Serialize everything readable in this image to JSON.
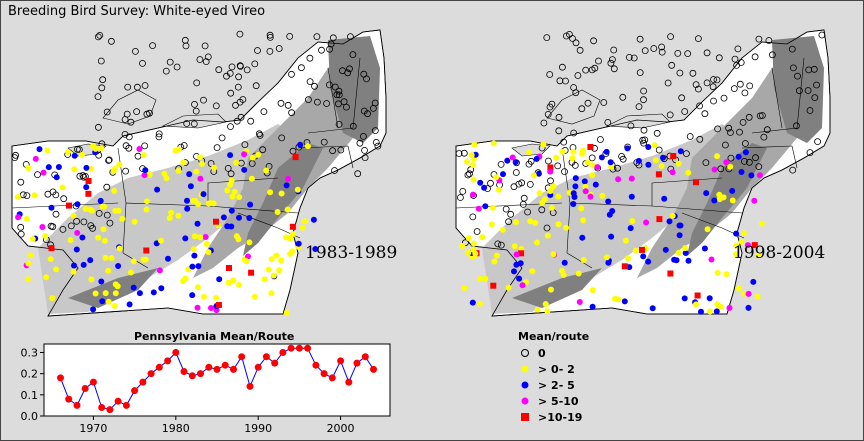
{
  "title": "Breeding Bird Survey: White-eyed Vireo",
  "maps": [
    {
      "period": "1983-1989"
    },
    {
      "period": "1998-2004"
    }
  ],
  "colors": {
    "background": "#dcdcdc",
    "land": "#ffffff",
    "range_light": "#c8c8c8",
    "range_mid": "#a8a8a8",
    "range_dark": "#808080",
    "zero": "#000000",
    "c0_2": "#ffff00",
    "c2_5": "#0000ff",
    "c5_10": "#ff00ff",
    "c10_19": "#ff0000",
    "line": "#0000ff",
    "points": "#ff0000"
  },
  "legend": {
    "title": "Mean/route",
    "items": [
      {
        "label": "0",
        "symbol": "open-circle",
        "color": "#000000"
      },
      {
        "label": "> 0- 2",
        "symbol": "dot",
        "color": "#ffff00"
      },
      {
        "label": "> 2- 5",
        "symbol": "dot",
        "color": "#0000ff"
      },
      {
        "label": "> 5-10",
        "symbol": "dot",
        "color": "#ff00ff"
      },
      {
        "label": ">10-19",
        "symbol": "square",
        "color": "#ff0000"
      }
    ]
  },
  "chart_data": {
    "type": "line",
    "title": "Pennsylvania Mean/Route",
    "xlabel": "",
    "ylabel": "",
    "xlim": [
      1964,
      2006
    ],
    "ylim": [
      0,
      0.34
    ],
    "xticks": [
      1970,
      1980,
      1990,
      2000
    ],
    "yticks": [
      0.0,
      0.1,
      0.2,
      0.3
    ],
    "ytick_labels": [
      "0.0",
      "0.1",
      "0.2",
      "0.3"
    ],
    "grid": false,
    "series": [
      {
        "x": [
          1966,
          1967,
          1968,
          1969,
          1970,
          1971,
          1972,
          1973,
          1974,
          1975,
          1976,
          1977,
          1978,
          1979,
          1980,
          1981,
          1982,
          1983,
          1984,
          1985,
          1986,
          1987,
          1988,
          1989,
          1990,
          1991,
          1992,
          1993,
          1994,
          1995,
          1996,
          1997,
          1998,
          1999,
          2000,
          2001,
          2002,
          2003,
          2004
        ],
        "values": [
          0.18,
          0.08,
          0.05,
          0.13,
          0.16,
          0.04,
          0.03,
          0.07,
          0.05,
          0.12,
          0.16,
          0.2,
          0.23,
          0.26,
          0.3,
          0.21,
          0.19,
          0.2,
          0.23,
          0.22,
          0.24,
          0.22,
          0.28,
          0.14,
          0.23,
          0.28,
          0.25,
          0.3,
          0.32,
          0.32,
          0.32,
          0.24,
          0.2,
          0.18,
          0.26,
          0.16,
          0.25,
          0.28,
          0.22
        ]
      }
    ]
  }
}
